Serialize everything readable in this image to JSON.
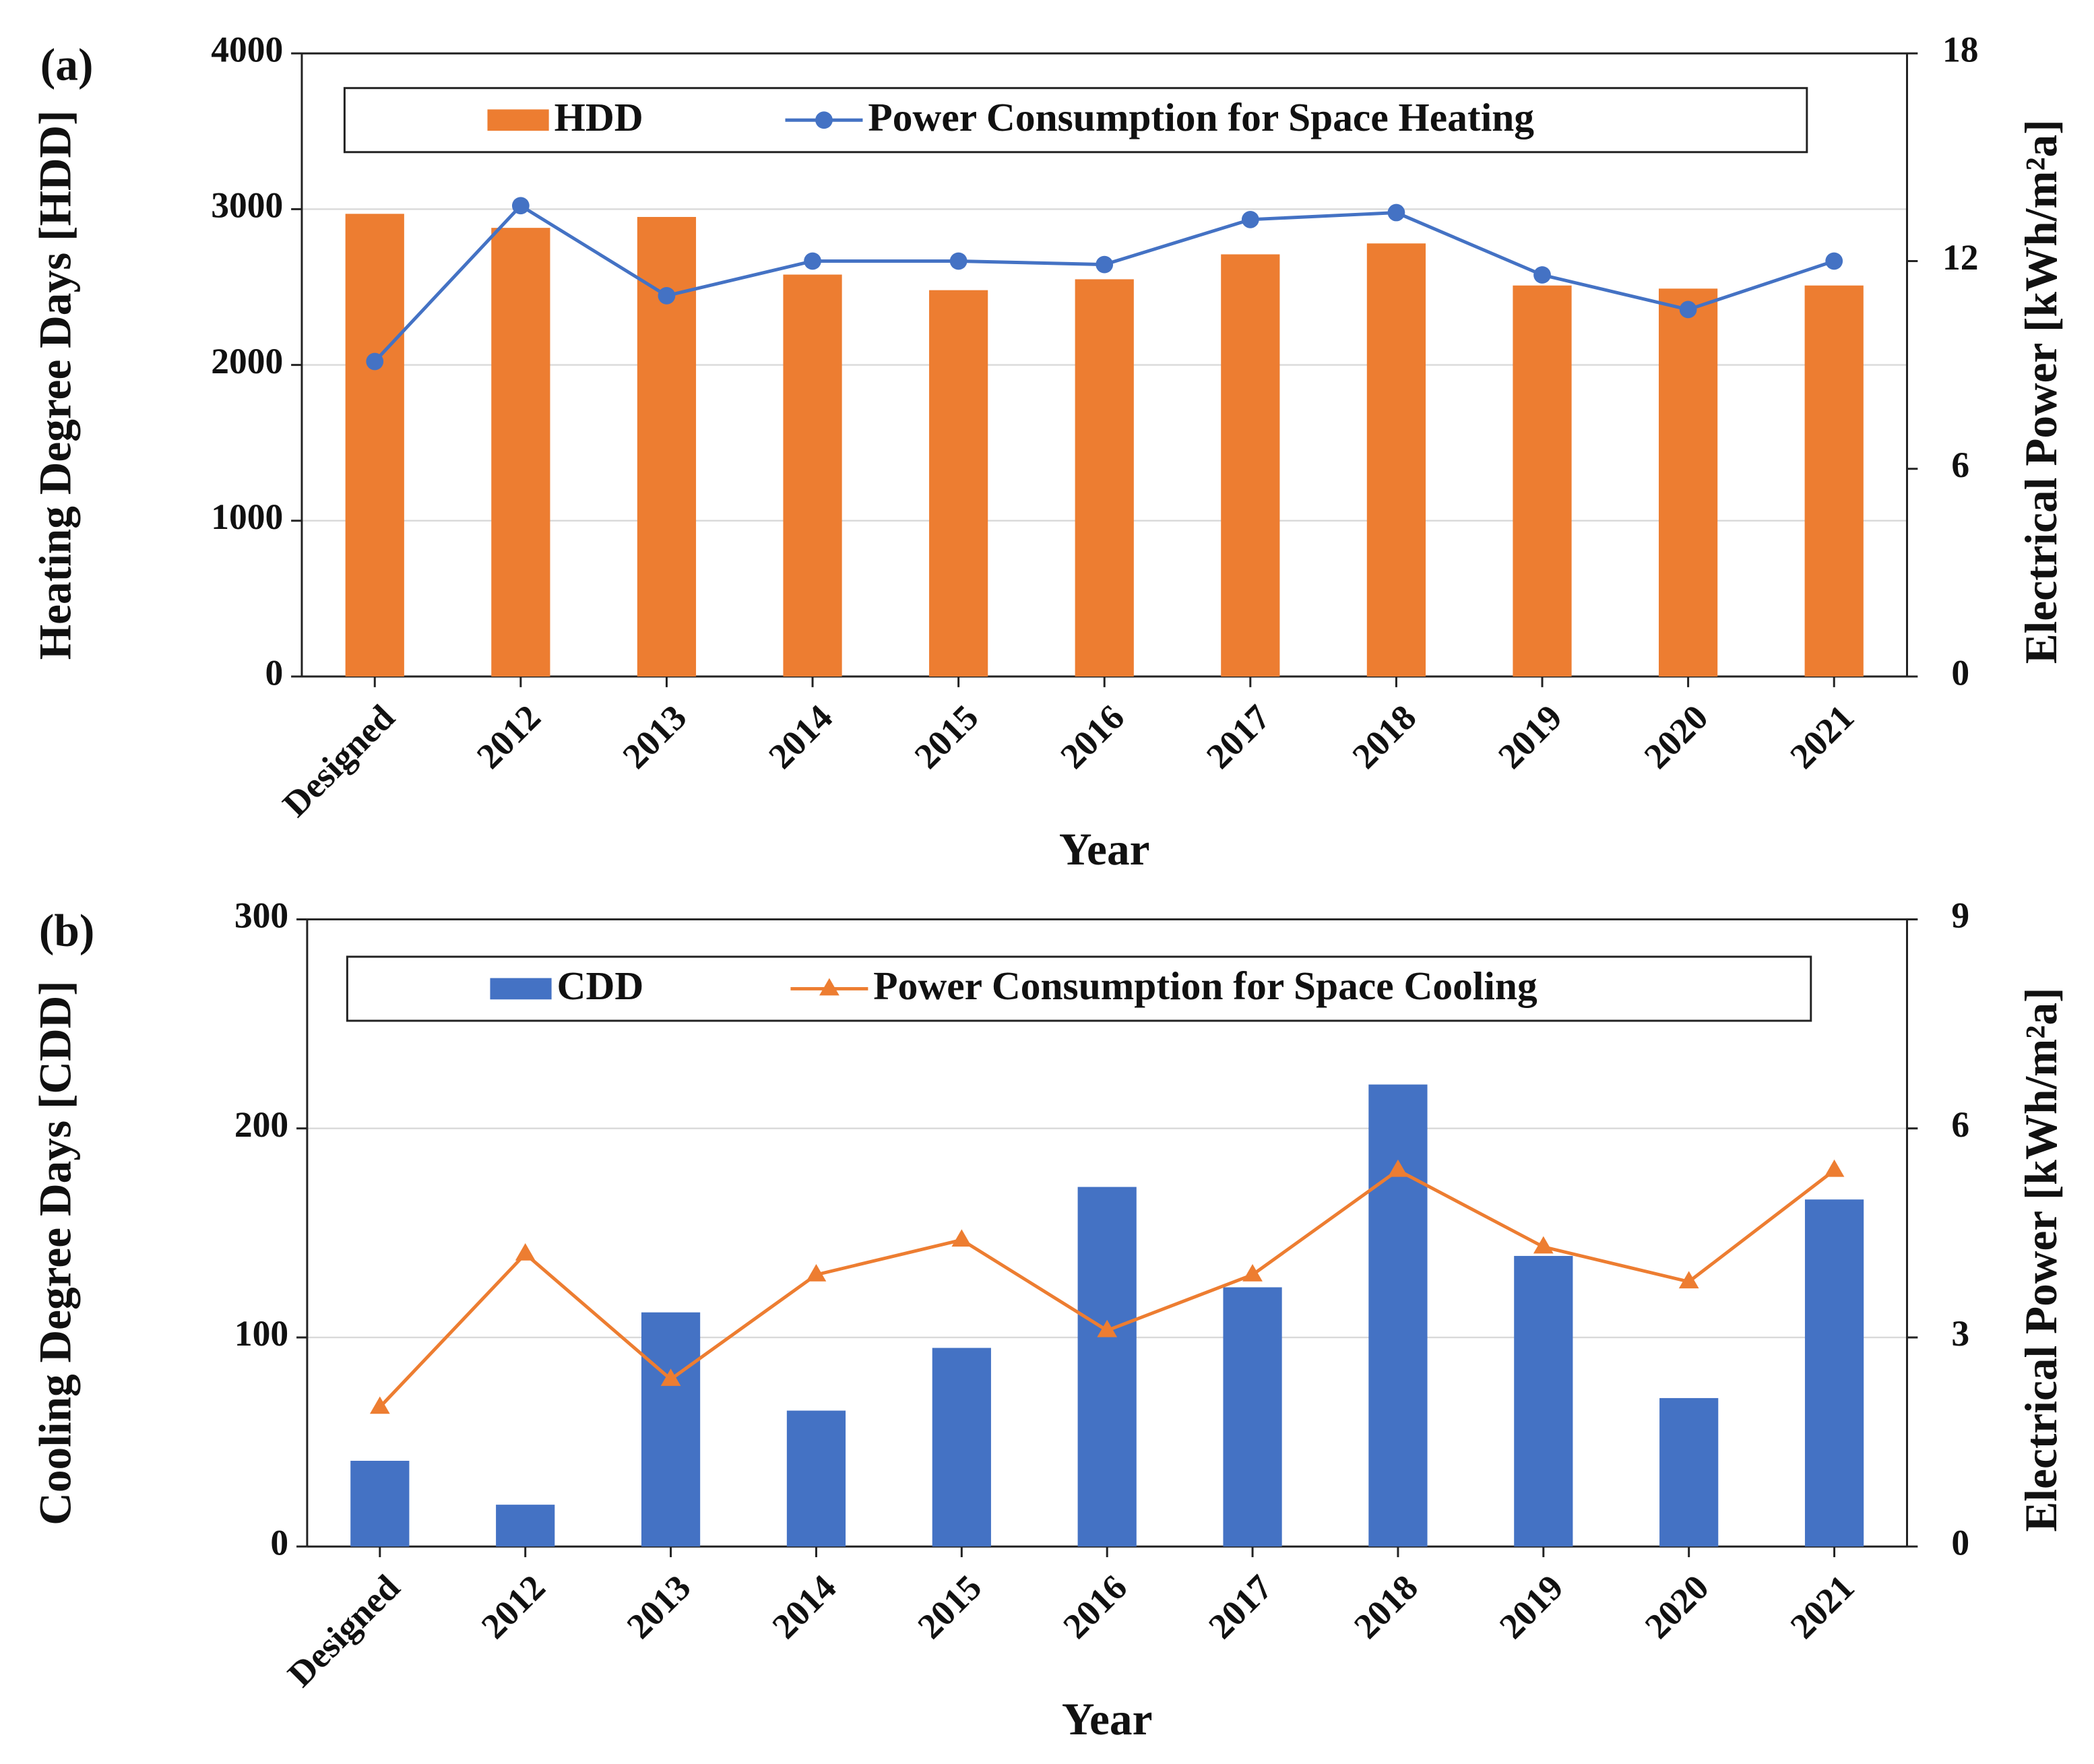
{
  "chart_data": [
    {
      "type": "bar-line",
      "panel_label": "(a)",
      "xlabel": "Year",
      "ylabel": "Heating Degree Days [HDD]",
      "y2label": "Electrical Power [kWh/m²a]",
      "categories": [
        "Designed",
        "2012",
        "2013",
        "2014",
        "2015",
        "2016",
        "2017",
        "2018",
        "2019",
        "2020",
        "2021"
      ],
      "series": [
        {
          "name": "HDD",
          "type": "bar",
          "color": "#ed7d31",
          "values": [
            2970,
            2880,
            2950,
            2580,
            2480,
            2550,
            2710,
            2780,
            2510,
            2490,
            2510
          ]
        },
        {
          "name": "Power Consumption for Space Heating",
          "type": "line",
          "marker": "circle",
          "axis": "y2",
          "color": "#4472c4",
          "values": [
            9.1,
            13.6,
            11.0,
            12.0,
            12.0,
            11.9,
            13.2,
            13.4,
            11.6,
            10.6,
            12.0
          ]
        }
      ],
      "ylim": [
        0,
        4000
      ],
      "yticks": [
        0,
        1000,
        2000,
        3000,
        4000
      ],
      "y2lim": [
        0,
        18
      ],
      "y2ticks": [
        0,
        6,
        12,
        18
      ],
      "grid": true
    },
    {
      "type": "bar-line",
      "panel_label": "(b)",
      "xlabel": "Year",
      "ylabel": "Cooling Degree Days [CDD]",
      "y2label": "Electrical Power [kWh/m²a]",
      "categories": [
        "Designed",
        "2012",
        "2013",
        "2014",
        "2015",
        "2016",
        "2017",
        "2018",
        "2019",
        "2020",
        "2021"
      ],
      "series": [
        {
          "name": "CDD",
          "type": "bar",
          "color": "#4472c4",
          "values": [
            41,
            20,
            112,
            65,
            95,
            172,
            124,
            221,
            139,
            71,
            166
          ]
        },
        {
          "name": "Power Consumption for Space Cooling",
          "type": "line",
          "marker": "triangle",
          "axis": "y2",
          "color": "#ed7d31",
          "values": [
            2.0,
            4.2,
            2.4,
            3.9,
            4.4,
            3.1,
            3.9,
            5.4,
            4.3,
            3.8,
            5.4
          ]
        }
      ],
      "ylim": [
        0,
        300
      ],
      "yticks": [
        0,
        100,
        200,
        300
      ],
      "y2lim": [
        0,
        9
      ],
      "y2ticks": [
        0,
        3,
        6,
        9
      ],
      "grid": true
    }
  ]
}
